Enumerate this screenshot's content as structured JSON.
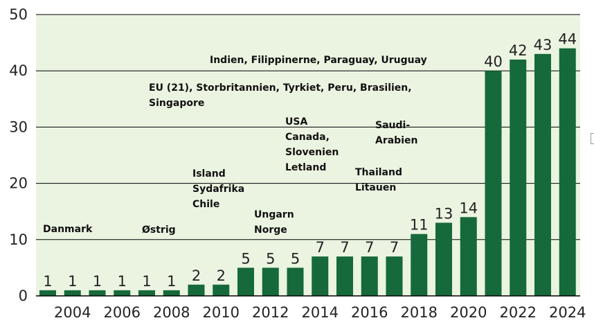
{
  "chart_data": {
    "type": "bar",
    "title": "",
    "xlabel": "",
    "ylabel": "",
    "ylim": [
      0,
      50
    ],
    "y_ticks": [
      0,
      10,
      20,
      30,
      40,
      50
    ],
    "grid": true,
    "bar_color": "#16693a",
    "plot_background": "#ebf4e1",
    "categories": [
      2003,
      2004,
      2005,
      2006,
      2007,
      2008,
      2009,
      2010,
      2011,
      2012,
      2013,
      2014,
      2015,
      2016,
      2017,
      2018,
      2019,
      2020,
      2021,
      2022,
      2023,
      2024
    ],
    "values": [
      1,
      1,
      1,
      1,
      1,
      1,
      2,
      2,
      5,
      5,
      5,
      7,
      7,
      7,
      7,
      11,
      13,
      14,
      40,
      42,
      43,
      44
    ],
    "x_tick_labels": [
      "2004",
      "2006",
      "2008",
      "2010",
      "2012",
      "2014",
      "2016",
      "2018",
      "2020",
      "2022",
      "2024"
    ],
    "annotations": {
      "danmark": "Danmark",
      "ostrig": "Østrig",
      "island": "Island\nSydafrika\nChile",
      "ungarn": "Ungarn\nNorge",
      "usa": "USA\nCanada,\nSlovenien\nLetland",
      "thailand": "Thailand\nLitauen",
      "saudi": "Saudi-\nArabien",
      "eu": "EU (21), Storbritannien, Tyrkiet, Peru, Brasilien,\nSingapore",
      "indien": "Indien, Filippinerne, Paraguay, Uruguay"
    }
  }
}
